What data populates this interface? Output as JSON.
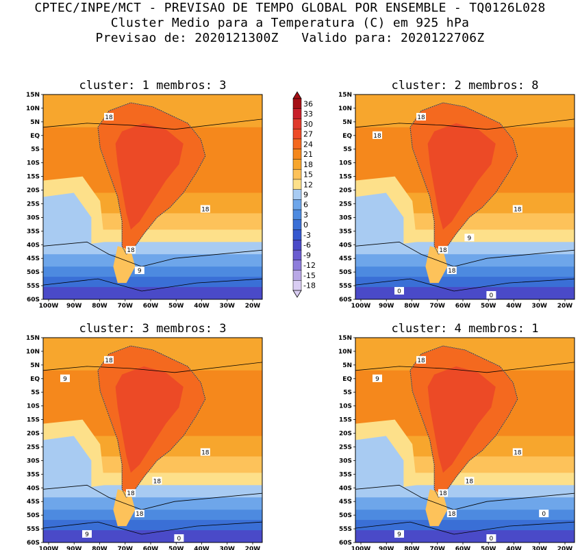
{
  "header": {
    "line1": "CPTEC/INPE/MCT - PREVISAO DE TEMPO GLOBAL POR ENSEMBLE - TQ0126L028",
    "line2": "Cluster Medio para a Temperatura (C) em 925 hPa",
    "line3": "Previsao de: 2020121300Z   Valido para: 2020122706Z"
  },
  "axes": {
    "lat_labels": [
      "15N",
      "10N",
      "5N",
      "EQ",
      "5S",
      "10S",
      "15S",
      "20S",
      "25S",
      "30S",
      "35S",
      "40S",
      "45S",
      "50S",
      "55S",
      "60S"
    ],
    "lon_labels": [
      "100W",
      "90W",
      "80W",
      "70W",
      "60W",
      "50W",
      "40W",
      "30W",
      "20W"
    ]
  },
  "colorbar": {
    "labels": [
      "36",
      "33",
      "30",
      "27",
      "24",
      "21",
      "18",
      "15",
      "12",
      "9",
      "6",
      "3",
      "0",
      "-3",
      "-6",
      "-9",
      "-12",
      "-15",
      "-18"
    ],
    "colors": [
      "#a50f15",
      "#c8202a",
      "#e03a2c",
      "#ee4b27",
      "#f4691f",
      "#f5881c",
      "#f7a62d",
      "#fdc25a",
      "#fde08a",
      "#a8cbf2",
      "#6ea6ea",
      "#4d8ae0",
      "#3a6fd6",
      "#3558cf",
      "#4a4ac8",
      "#6a5cd0",
      "#8e7ddb",
      "#b9a8e6",
      "#d9cdf2"
    ]
  },
  "palette": {
    "hot": "#ec4a26",
    "warm": "#f4691f",
    "orange": "#f5881c",
    "lightorange": "#f7a62d",
    "yellow": "#fdc25a",
    "paleyellow": "#fde08a",
    "lightblue": "#a8cbf2",
    "midblue": "#6ea6ea",
    "blue": "#4d8ae0",
    "darkblue": "#3a6fd6",
    "deepblue": "#3558cf",
    "purple": "#4a4ac8"
  },
  "panels": [
    {
      "title": "cluster: 1   membros: 3",
      "labels": [
        "18",
        "18",
        "18",
        "9"
      ]
    },
    {
      "title": "cluster: 2   membros: 8",
      "labels": [
        "18",
        "18",
        "18",
        "18",
        "18",
        "9",
        "0",
        "0"
      ]
    },
    {
      "title": "cluster: 3   membros: 3",
      "labels": [
        "18",
        "18",
        "18",
        "18",
        "9",
        "18",
        "9",
        "0"
      ]
    },
    {
      "title": "cluster: 4   membros: 1",
      "labels": [
        "18",
        "18",
        "18",
        "18",
        "9",
        "18",
        "9",
        "0",
        "0"
      ]
    }
  ]
}
